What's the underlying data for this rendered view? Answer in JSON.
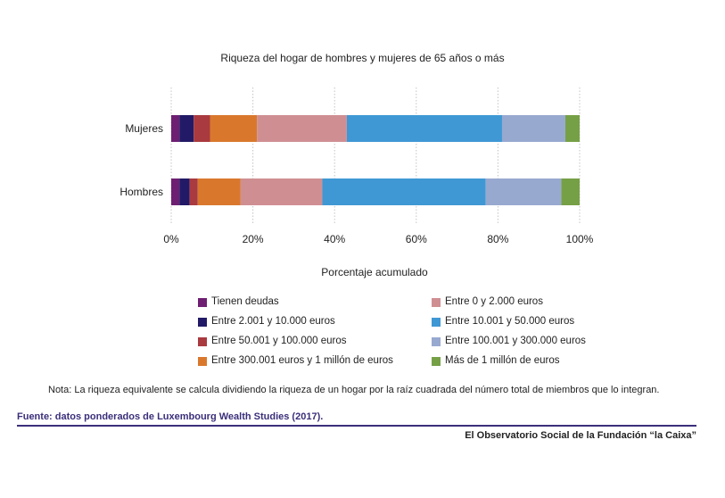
{
  "chart_data": {
    "type": "bar",
    "orientation": "horizontal",
    "stacked": true,
    "title": "Riqueza del hogar de hombres y mujeres de 65 años o más",
    "xlabel": "Porcentaje acumulado",
    "ylabel": "",
    "categories": [
      "Mujeres",
      "Hombres"
    ],
    "xlim": [
      0,
      100
    ],
    "x_ticks": [
      "0%",
      "20%",
      "40%",
      "60%",
      "80%",
      "100%"
    ],
    "grid": "vertical dotted",
    "legend_placement": "bottom",
    "series": [
      {
        "name": "Tienen deudas",
        "color": "#6e1f72",
        "values": [
          2.0,
          2.0
        ]
      },
      {
        "name": "Entre 2.001 y 10.000 euros",
        "color": "#221a66",
        "values": [
          3.5,
          2.5
        ]
      },
      {
        "name": "Entre 50.001 y 100.000 euros",
        "color": "#a93a3f",
        "values": [
          4.0,
          2.0
        ]
      },
      {
        "name": "Entre 300.001 euros y 1 millón de euros",
        "color": "#d9782d",
        "values": [
          11.5,
          10.5
        ]
      },
      {
        "name": "Entre 0 y 2.000 euros",
        "color": "#cf8f92",
        "values": [
          22.0,
          20.0
        ]
      },
      {
        "name": "Entre 10.001 y 50.000 euros",
        "color": "#3f98d4",
        "values": [
          38.0,
          40.0
        ]
      },
      {
        "name": "Entre 100.001 y 300.000 euros",
        "color": "#98a9d0",
        "values": [
          15.5,
          18.5
        ]
      },
      {
        "name": "Más de 1 millón de euros",
        "color": "#76a046",
        "values": [
          3.5,
          4.5
        ]
      }
    ]
  },
  "legend": {
    "left": [
      {
        "label": "Tienen deudas",
        "color": "#6e1f72"
      },
      {
        "label": "Entre 2.001 y 10.000 euros",
        "color": "#221a66"
      },
      {
        "label": "Entre 50.001 y 100.000 euros",
        "color": "#a93a3f"
      },
      {
        "label": "Entre 300.001 euros y 1 millón de euros",
        "color": "#d9782d"
      }
    ],
    "right": [
      {
        "label": "Entre 0 y 2.000 euros",
        "color": "#cf8f92"
      },
      {
        "label": "Entre 10.001 y 50.000 euros",
        "color": "#3f98d4"
      },
      {
        "label": "Entre 100.001 y 300.000 euros",
        "color": "#98a9d0"
      },
      {
        "label": "Más de 1 millón de euros",
        "color": "#76a046"
      }
    ]
  },
  "note": "Nota: La riqueza equivalente se calcula dividiendo la riqueza de un hogar por la raíz cuadrada del número total de miembros que lo integran.",
  "source": "Fuente:  datos ponderados de Luxembourg Wealth Studies (2017).",
  "footer": "El Observatorio Social de la Fundación “la Caixa”",
  "colors": {
    "accent": "#3a2f7a"
  }
}
